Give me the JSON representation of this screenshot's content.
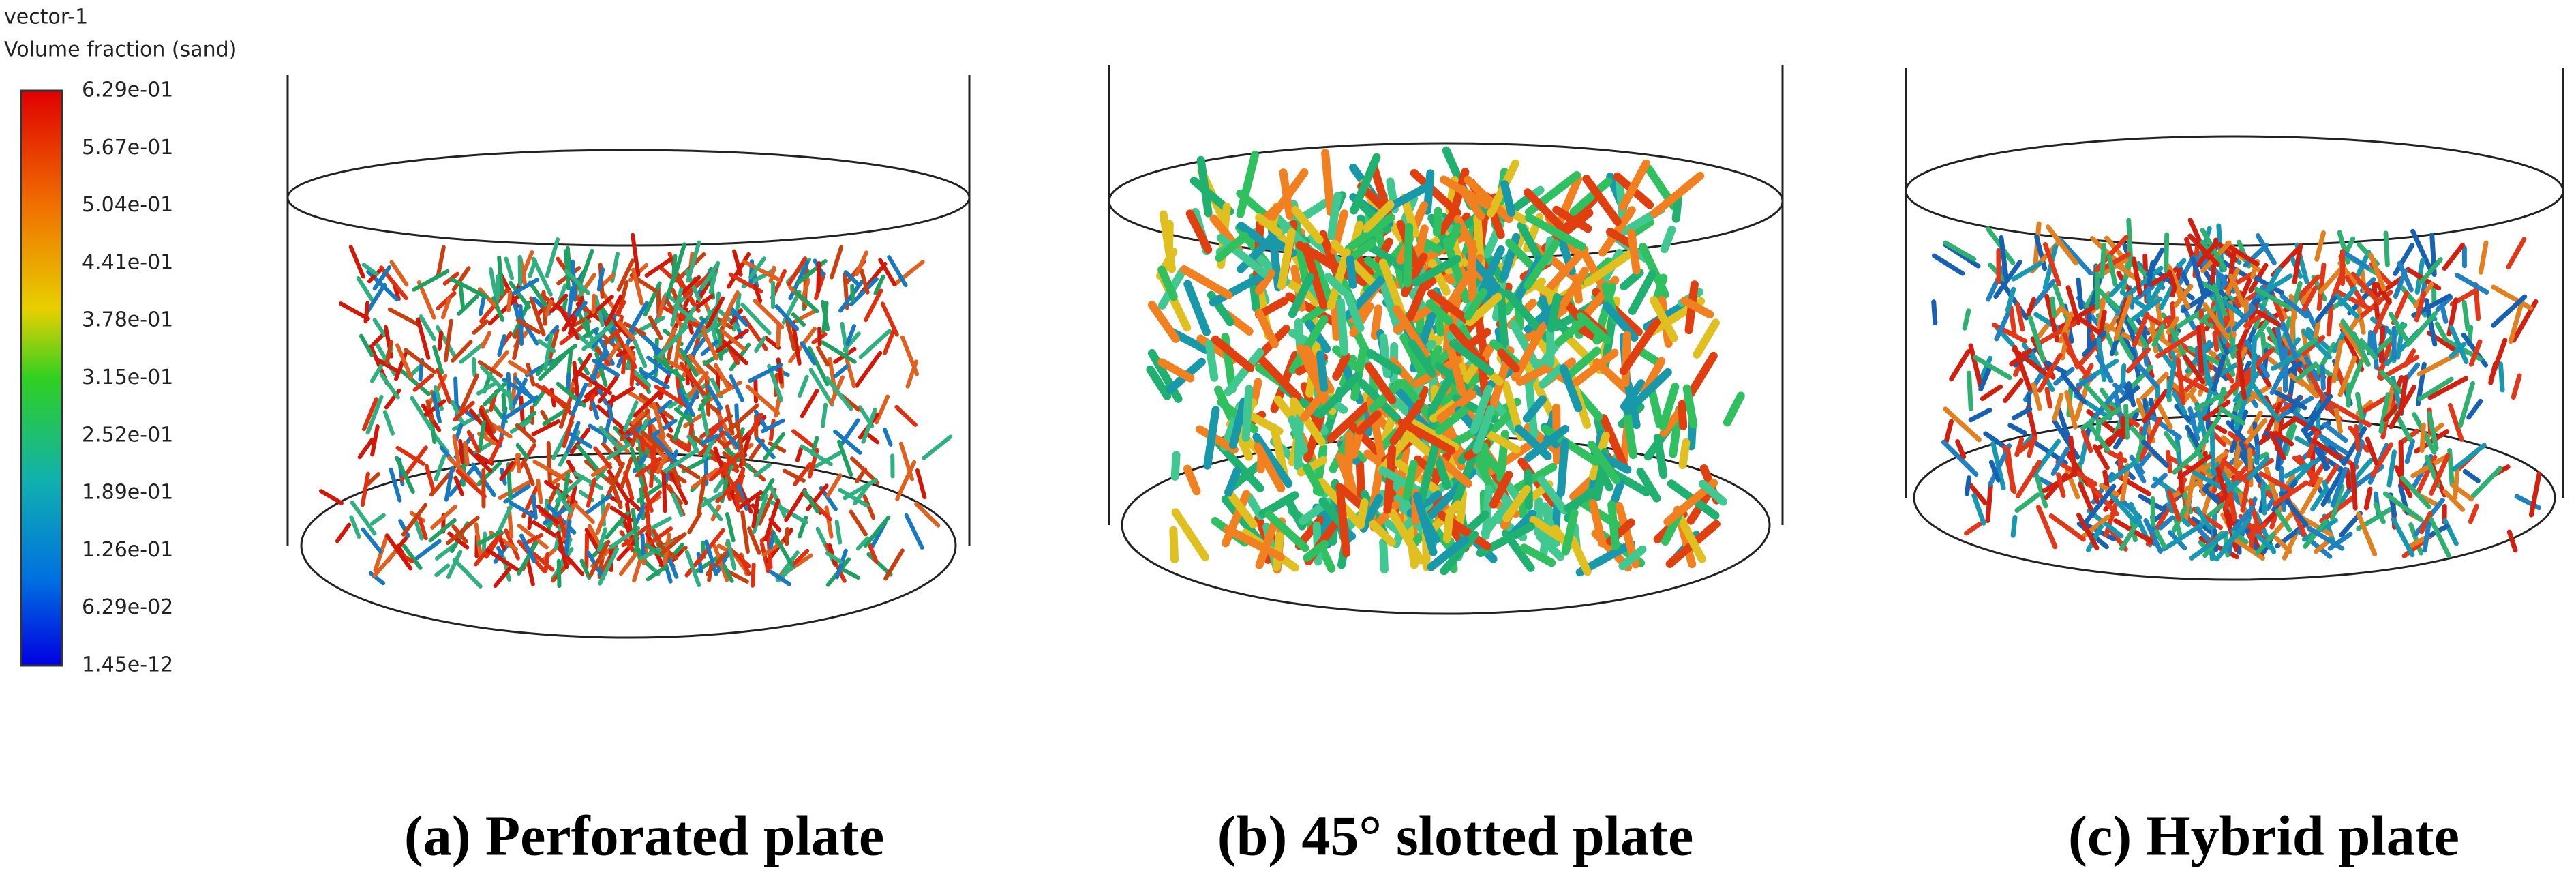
{
  "legend": {
    "title": "vector-1",
    "subtitle": "Volume fraction (sand)",
    "labels": [
      "6.29e-01",
      "5.67e-01",
      "5.04e-01",
      "4.41e-01",
      "3.78e-01",
      "3.15e-01",
      "2.52e-01",
      "1.89e-01",
      "1.26e-01",
      "6.29e-02",
      "1.45e-12"
    ]
  },
  "panels": [
    {
      "caption": "(a) Perforated plate"
    },
    {
      "caption": "(b) 45° slotted plate"
    },
    {
      "caption": "(c) Hybrid plate"
    }
  ]
}
